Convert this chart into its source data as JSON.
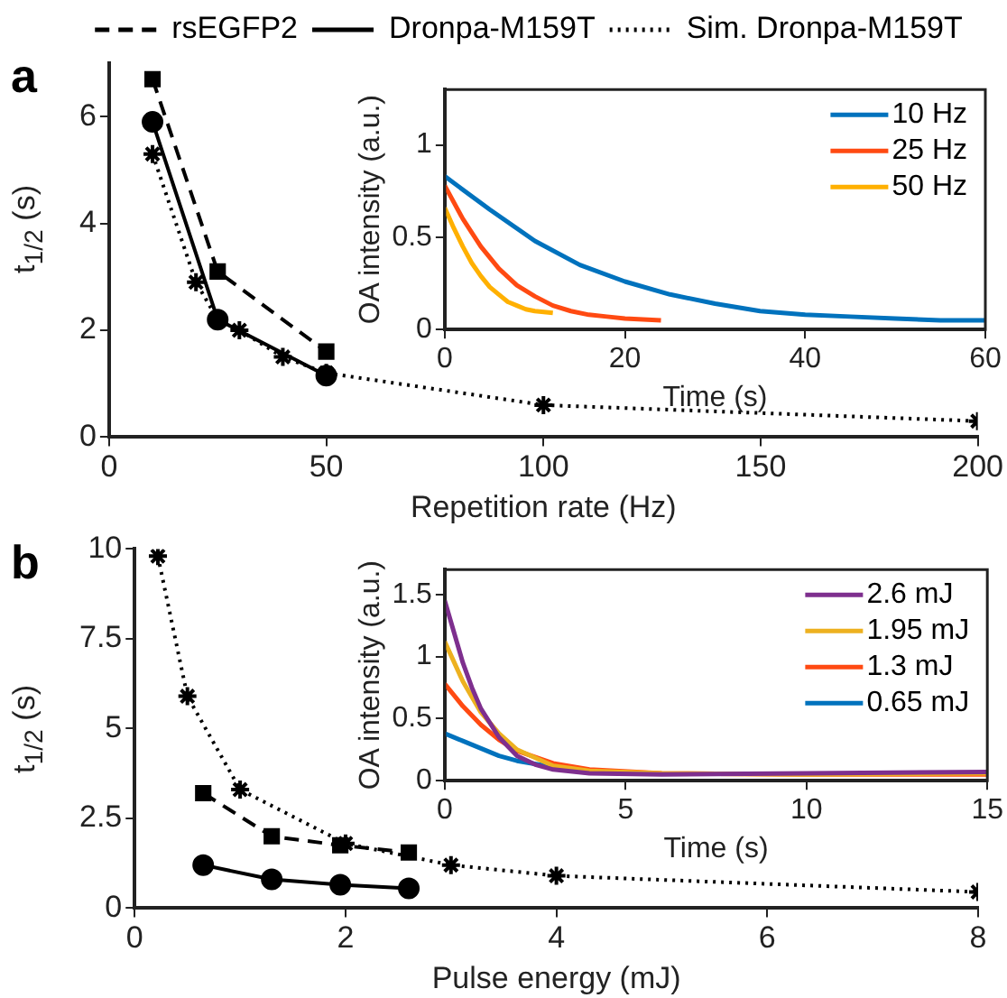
{
  "chart_data": [
    {
      "type": "line",
      "xlabel": "Repetition rate (Hz)",
      "ylabel": "t$_{1/2}$ (s)",
      "annotations": [
        "a"
      ],
      "xlim": [
        0,
        200
      ],
      "xticks": [
        0,
        50,
        100,
        150,
        200
      ],
      "ylim": [
        0,
        7
      ],
      "yticks": [
        0,
        2,
        4,
        6
      ],
      "grid": false,
      "legend": "top",
      "series": [
        {
          "name": "rsEGFP2",
          "color": "#000000",
          "marker": "square",
          "line_style": "dashed",
          "x": [
            10,
            25,
            50
          ],
          "values": [
            6.7,
            3.1,
            1.6
          ]
        },
        {
          "name": "Dronpa-M159T",
          "color": "#000000",
          "marker": "circle",
          "line_style": "solid",
          "x": [
            10,
            25,
            50
          ],
          "values": [
            5.9,
            2.2,
            1.15
          ]
        },
        {
          "name": "Sim. Dronpa-M159T",
          "color": "#000000",
          "marker": "cross",
          "line_style": "dotted",
          "x": [
            10,
            20,
            25,
            30,
            40,
            50,
            100,
            200
          ],
          "values": [
            5.3,
            2.9,
            2.2,
            2.0,
            1.5,
            1.2,
            0.6,
            0.3
          ]
        }
      ]
    },
    {
      "type": "line",
      "xlabel": "Time (s)",
      "ylabel": "OA intensity (a.u.)",
      "xlim": [
        0,
        60
      ],
      "xticks": [
        0,
        20,
        40,
        60
      ],
      "ylim": [
        0,
        1.3
      ],
      "yticks": [
        0,
        0.5,
        1
      ],
      "grid": false,
      "legend": "top right",
      "marker": "none",
      "line_style": "solid",
      "series": [
        {
          "name": "10 Hz",
          "color": "#0072bd",
          "x": [
            0,
            5,
            10,
            15,
            20,
            25,
            30,
            35,
            40,
            45,
            50,
            55,
            60
          ],
          "values": [
            0.83,
            0.65,
            0.48,
            0.35,
            0.26,
            0.19,
            0.14,
            0.1,
            0.08,
            0.07,
            0.06,
            0.05,
            0.05
          ]
        },
        {
          "name": "25 Hz",
          "color": "#ff4a12",
          "x": [
            0,
            2,
            4,
            6,
            8,
            10,
            12,
            14,
            16,
            18,
            20,
            24
          ],
          "values": [
            0.78,
            0.6,
            0.45,
            0.33,
            0.24,
            0.18,
            0.13,
            0.1,
            0.08,
            0.07,
            0.06,
            0.05
          ]
        },
        {
          "name": "50 Hz",
          "color": "#ffb000",
          "x": [
            0,
            1,
            2,
            3,
            4,
            5,
            6,
            7,
            8,
            9,
            10,
            12
          ],
          "values": [
            0.66,
            0.55,
            0.45,
            0.36,
            0.29,
            0.23,
            0.19,
            0.15,
            0.13,
            0.11,
            0.1,
            0.09
          ]
        }
      ]
    },
    {
      "type": "line",
      "xlabel": "Pulse energy (mJ)",
      "ylabel": "t$_{1/2}$ (s)",
      "annotations": [
        "b"
      ],
      "xlim": [
        0,
        8
      ],
      "xticks": [
        0,
        2,
        4,
        6,
        8
      ],
      "ylim": [
        0,
        10
      ],
      "yticks": [
        0,
        2.5,
        5,
        7.5,
        10
      ],
      "grid": false,
      "series": [
        {
          "color": "#000000",
          "marker": "square",
          "line_style": "dashed",
          "x": [
            0.65,
            1.3,
            1.95,
            2.6
          ],
          "values": [
            3.2,
            2.0,
            1.75,
            1.55
          ]
        },
        {
          "color": "#000000",
          "marker": "circle",
          "line_style": "solid",
          "x": [
            0.65,
            1.3,
            1.95,
            2.6
          ],
          "values": [
            1.2,
            0.8,
            0.65,
            0.55
          ]
        },
        {
          "color": "#000000",
          "marker": "cross",
          "line_style": "dotted",
          "x": [
            0.22,
            0.5,
            1,
            2,
            3,
            4,
            8
          ],
          "values": [
            9.8,
            5.9,
            3.3,
            1.8,
            1.2,
            0.9,
            0.45
          ]
        }
      ]
    },
    {
      "type": "line",
      "xlabel": "Time (s)",
      "ylabel": "OA intensity (a.u.)",
      "xlim": [
        0,
        15
      ],
      "xticks": [
        0,
        5,
        10,
        15
      ],
      "ylim": [
        0,
        1.7
      ],
      "yticks": [
        0,
        0.5,
        1,
        1.5
      ],
      "grid": false,
      "legend": "top right",
      "marker": "none",
      "line_style": "solid",
      "series": [
        {
          "name": "2.6 mJ",
          "color": "#7e2f8e",
          "x": [
            0,
            0.25,
            0.5,
            0.75,
            1,
            1.5,
            2,
            2.5,
            3,
            4,
            6,
            10,
            15
          ],
          "values": [
            1.45,
            1.2,
            0.95,
            0.75,
            0.58,
            0.35,
            0.2,
            0.13,
            0.09,
            0.06,
            0.05,
            0.06,
            0.07
          ]
        },
        {
          "name": "1.95 mJ",
          "color": "#edb120",
          "x": [
            0,
            0.5,
            1,
            1.5,
            2,
            3,
            4,
            6,
            10,
            15
          ],
          "values": [
            1.12,
            0.8,
            0.55,
            0.38,
            0.25,
            0.12,
            0.08,
            0.06,
            0.05,
            0.06
          ]
        },
        {
          "name": "1.3 mJ",
          "color": "#ff4a12",
          "x": [
            0,
            0.5,
            1,
            1.5,
            2,
            3,
            4,
            6,
            10,
            15
          ],
          "values": [
            0.78,
            0.6,
            0.45,
            0.33,
            0.24,
            0.14,
            0.09,
            0.06,
            0.05,
            0.05
          ]
        },
        {
          "name": "0.65 mJ",
          "color": "#0072bd",
          "x": [
            0,
            0.5,
            1,
            1.5,
            2,
            3,
            4
          ],
          "values": [
            0.38,
            0.32,
            0.26,
            0.2,
            0.16,
            0.11,
            0.08
          ]
        }
      ]
    }
  ]
}
